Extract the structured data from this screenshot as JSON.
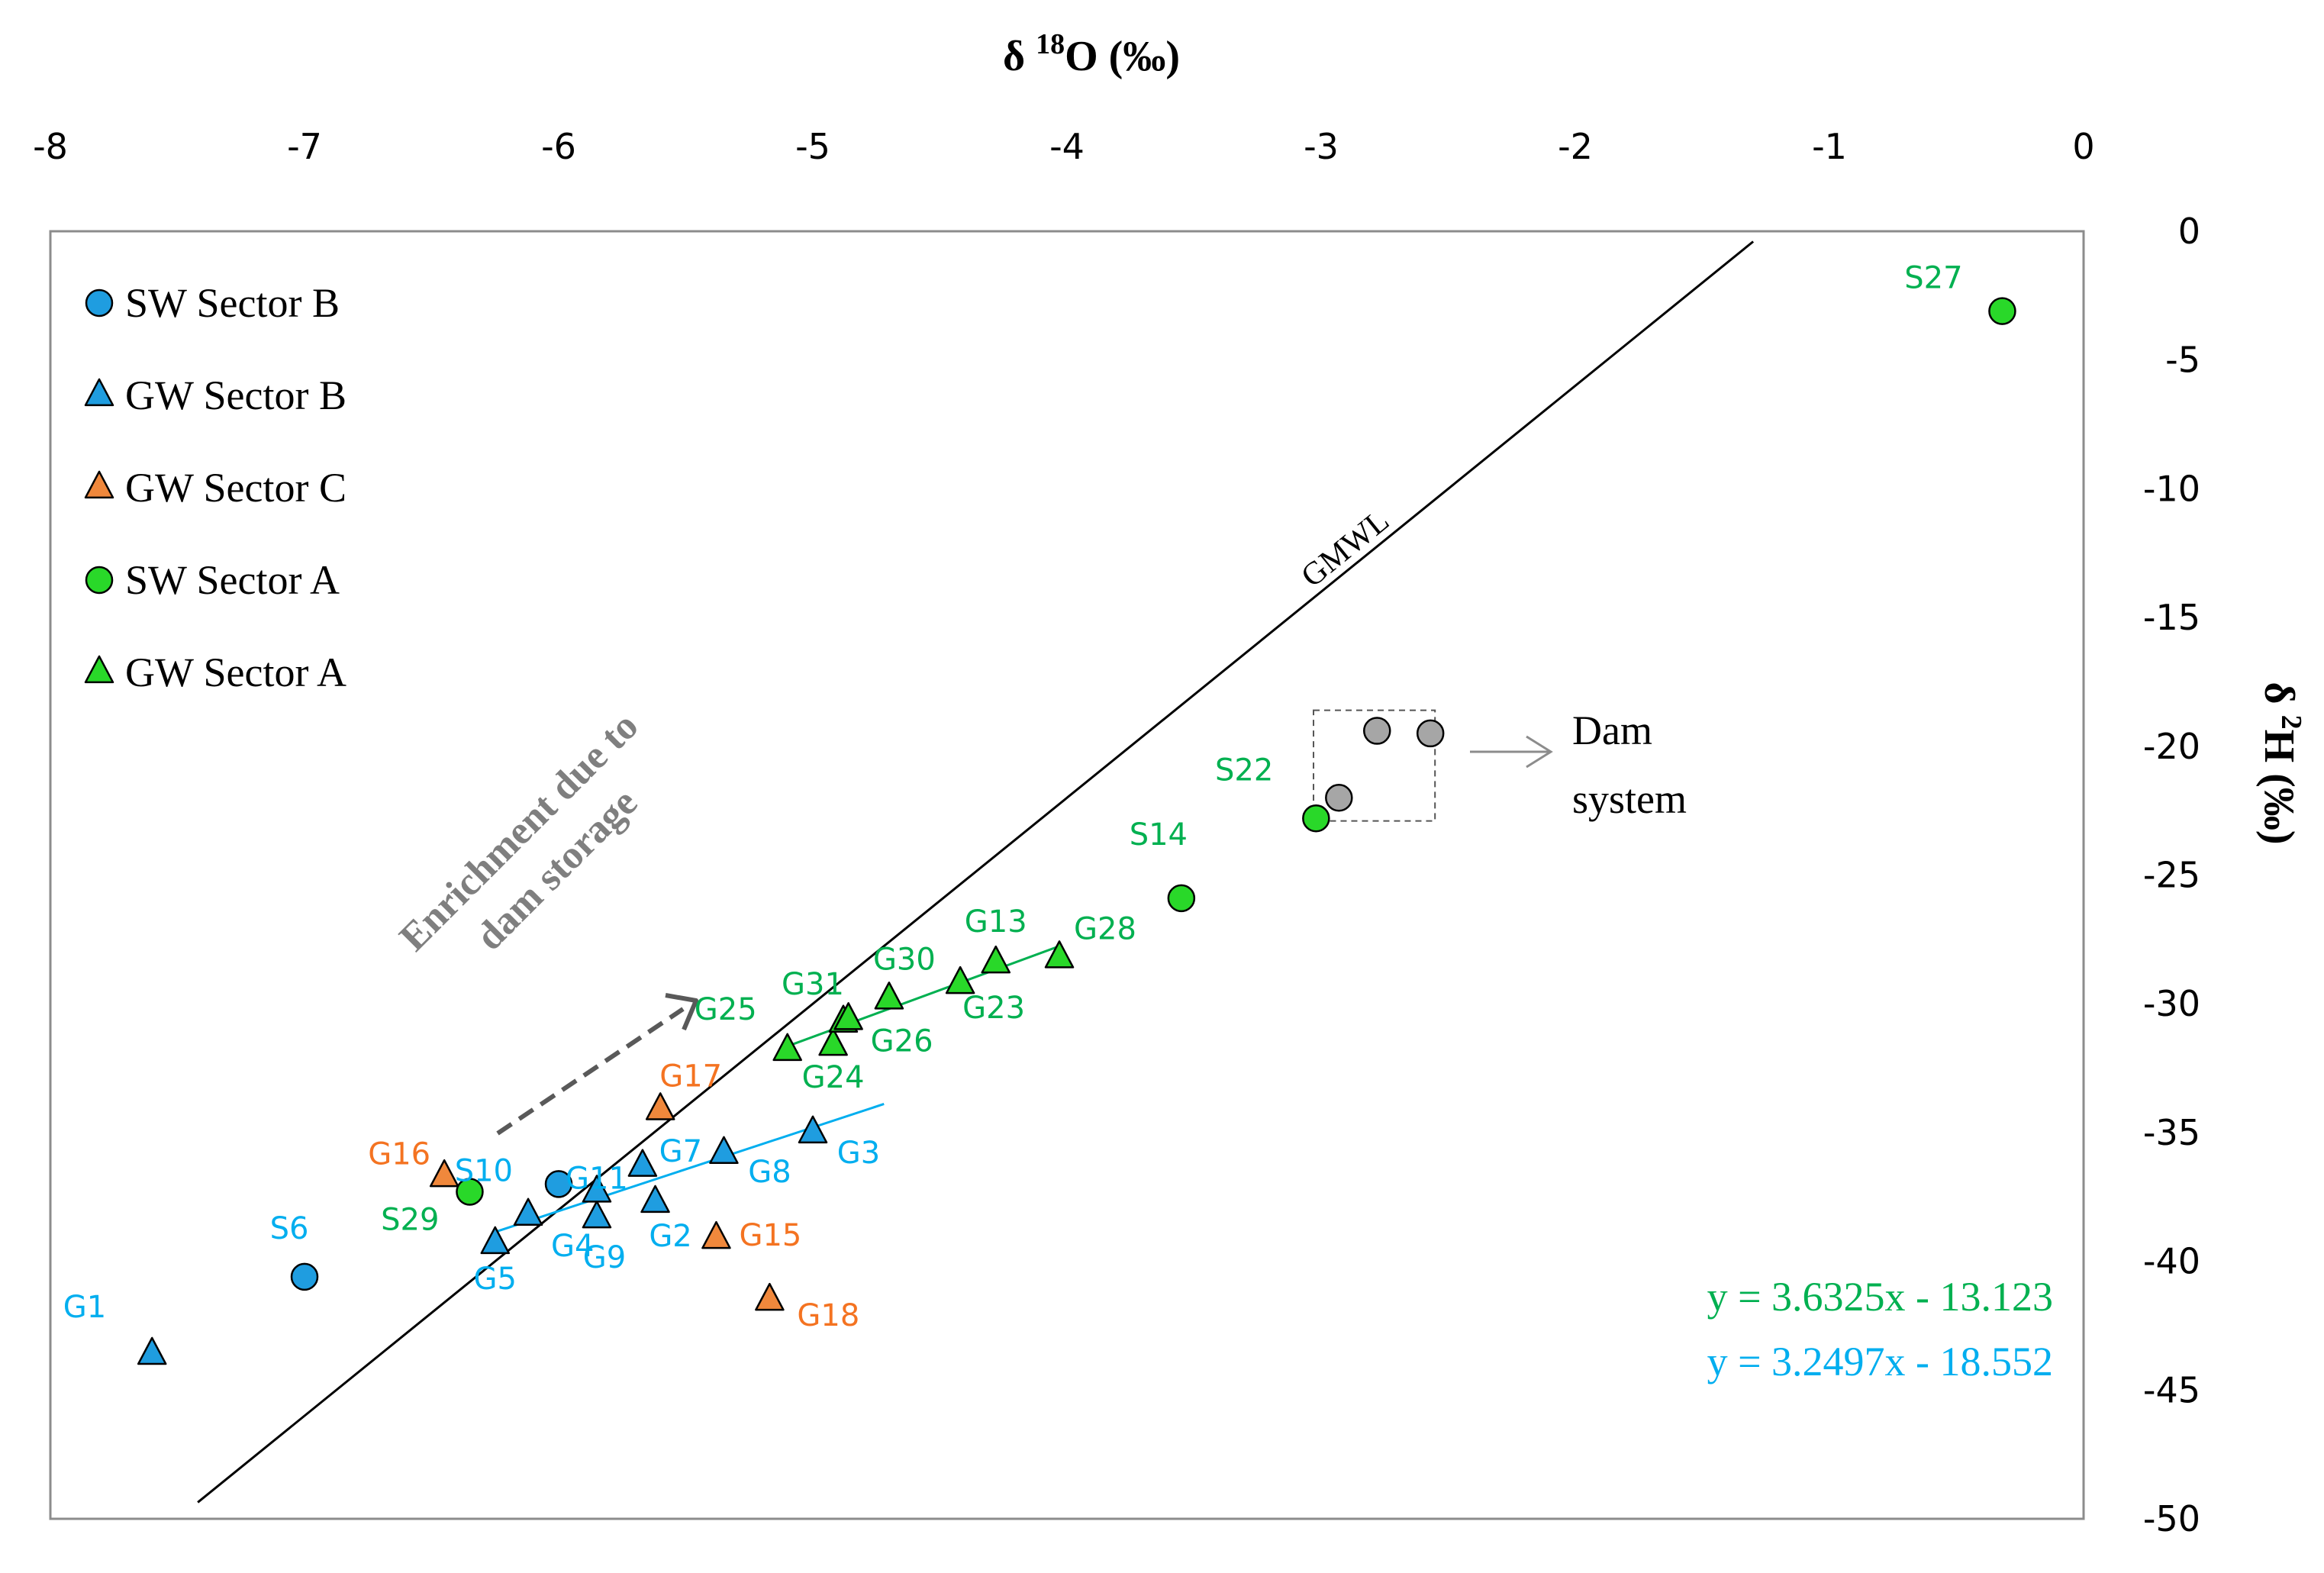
{
  "chart_data": {
    "type": "scatter",
    "x_axis": {
      "label": "δ ¹⁸O (‰)",
      "label_main": "δ ",
      "label_sup": "18",
      "label_tail": "O (‰)",
      "range": [
        -8,
        0
      ],
      "ticks": [
        -8,
        -7,
        -6,
        -5,
        -4,
        -3,
        -2,
        -1,
        0
      ],
      "tick_labels": [
        "-8",
        "-7",
        "-6",
        "-5",
        "-4",
        "-3",
        "-2",
        "-1",
        "0"
      ],
      "position": "top"
    },
    "y_axis": {
      "label": "δ ²H (‰)",
      "label_main": "δ ",
      "label_sup": "2",
      "label_tail": "H (‰)",
      "range": [
        -50,
        0
      ],
      "ticks": [
        0,
        -5,
        -10,
        -15,
        -20,
        -25,
        -30,
        -35,
        -40,
        -45,
        -50
      ],
      "tick_labels": [
        "0",
        "-5",
        "-10",
        "-15",
        "-20",
        "-25",
        "-30",
        "-35",
        "-40",
        "-45",
        "-50"
      ],
      "position": "right"
    },
    "legend": {
      "placement": "top-left",
      "entries": [
        {
          "label": "SW Sector B",
          "marker": "circle",
          "color": "#1f9de0"
        },
        {
          "label": "GW Sector B",
          "marker": "triangle",
          "color": "#1f9de0"
        },
        {
          "label": "GW Sector C",
          "marker": "triangle",
          "color": "#f0883c"
        },
        {
          "label": "SW Sector A",
          "marker": "circle",
          "color": "#29d829"
        },
        {
          "label": "GW Sector A",
          "marker": "triangle",
          "color": "#29d829"
        }
      ]
    },
    "series": [
      {
        "name": "SW Sector B",
        "marker": "circle",
        "color": "#1f9de0",
        "label_color": "#00aeef",
        "points": [
          {
            "id": "S6",
            "x": -7.0,
            "y": -40.6
          },
          {
            "id": "S10",
            "x": -6.0,
            "y": -37.0
          }
        ]
      },
      {
        "name": "GW Sector B",
        "marker": "triangle",
        "color": "#1f9de0",
        "label_color": "#00aeef",
        "points": [
          {
            "id": "G1",
            "x": -7.6,
            "y": -43.6
          },
          {
            "id": "G5",
            "x": -6.25,
            "y": -39.3
          },
          {
            "id": "G4",
            "x": -6.12,
            "y": -38.2
          },
          {
            "id": "G9",
            "x": -5.85,
            "y": -38.3
          },
          {
            "id": "G11",
            "x": -5.85,
            "y": -37.3
          },
          {
            "id": "G2",
            "x": -5.62,
            "y": -37.7
          },
          {
            "id": "G7",
            "x": -5.67,
            "y": -36.3
          },
          {
            "id": "G8",
            "x": -5.35,
            "y": -35.8
          },
          {
            "id": "G3",
            "x": -5.0,
            "y": -35.0
          }
        ]
      },
      {
        "name": "GW Sector C",
        "marker": "triangle",
        "color": "#f0883c",
        "label_color": "#f47321",
        "points": [
          {
            "id": "G16",
            "x": -6.45,
            "y": -36.7
          },
          {
            "id": "G17",
            "x": -5.6,
            "y": -34.1
          },
          {
            "id": "G15",
            "x": -5.38,
            "y": -39.1
          },
          {
            "id": "G18",
            "x": -5.17,
            "y": -41.5
          }
        ]
      },
      {
        "name": "SW Sector A",
        "marker": "circle",
        "color": "#29d829",
        "label_color": "#00b050",
        "points": [
          {
            "id": "S29",
            "x": -6.35,
            "y": -37.3
          },
          {
            "id": "S14",
            "x": -3.55,
            "y": -25.9
          },
          {
            "id": "S22",
            "x": -3.02,
            "y": -22.8
          },
          {
            "id": "S27",
            "x": -0.32,
            "y": -3.1
          }
        ]
      },
      {
        "name": "GW Sector A",
        "marker": "triangle",
        "color": "#29d829",
        "label_color": "#00b050",
        "points": [
          {
            "id": "G25",
            "x": -5.1,
            "y": -31.8
          },
          {
            "id": "G24",
            "x": -4.92,
            "y": -31.6
          },
          {
            "id": "G31",
            "x": -4.88,
            "y": -30.7
          },
          {
            "id": "G26",
            "x": -4.86,
            "y": -30.6
          },
          {
            "id": "G30",
            "x": -4.7,
            "y": -29.8
          },
          {
            "id": "G23",
            "x": -4.42,
            "y": -29.2
          },
          {
            "id": "G13",
            "x": -4.28,
            "y": -28.4
          },
          {
            "id": "G28",
            "x": -4.03,
            "y": -28.2
          }
        ]
      },
      {
        "name": "Dam system",
        "marker": "circle",
        "color": "#a6a6a6",
        "label_color": "#000000",
        "points": [
          {
            "id": "",
            "x": -2.93,
            "y": -22.0
          },
          {
            "id": "",
            "x": -2.78,
            "y": -19.4
          },
          {
            "id": "",
            "x": -2.57,
            "y": -19.5
          }
        ]
      }
    ],
    "lines": [
      {
        "name": "GMWL",
        "label": "GMWL",
        "slope": 8,
        "intercept": 10,
        "x_range": [
          -7.42,
          -1.3
        ],
        "color": "#000000"
      },
      {
        "name": "GW Sector A trend",
        "slope": 3.6325,
        "intercept": -13.123,
        "x_range": [
          -5.1,
          -4.03
        ],
        "color": "#00b050"
      },
      {
        "name": "GW Sector B trend",
        "slope": 3.2497,
        "intercept": -18.552,
        "x_range": [
          -6.25,
          -4.72
        ],
        "color": "#00aeef"
      }
    ],
    "equations": [
      {
        "text": "y = 3.6325x - 13.123",
        "color": "#00b050"
      },
      {
        "text": "y = 3.2497x - 18.552",
        "color": "#00aeef"
      }
    ],
    "annotations": {
      "dam_box_label_line1": "Dam",
      "dam_box_label_line2": "system",
      "enrichment_line1": "Enrichment due to",
      "enrichment_line2": "dam storage"
    }
  }
}
